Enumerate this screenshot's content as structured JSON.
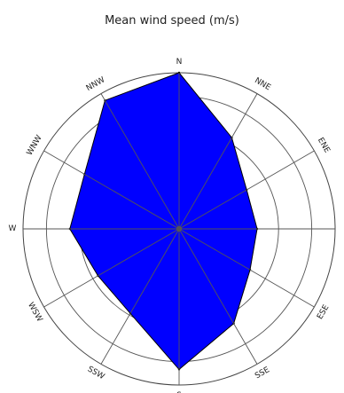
{
  "chart_data": {
    "type": "radar",
    "title": "Mean wind speed (m/s)",
    "directions": [
      "N",
      "NNE",
      "ENE",
      "E",
      "ESE",
      "SSE",
      "S",
      "SSW",
      "WSW",
      "W",
      "WNW",
      "NNW"
    ],
    "values": [
      4.0,
      2.7,
      2.0,
      2.0,
      2.1,
      2.8,
      3.6,
      2.5,
      2.4,
      2.8,
      2.8,
      3.8
    ],
    "rmax": 4.0,
    "rings": [
      1,
      2,
      3,
      4
    ],
    "grid": true,
    "fill_color": "#0000ff",
    "edge_color": "#000000",
    "grid_color": "#555555"
  }
}
